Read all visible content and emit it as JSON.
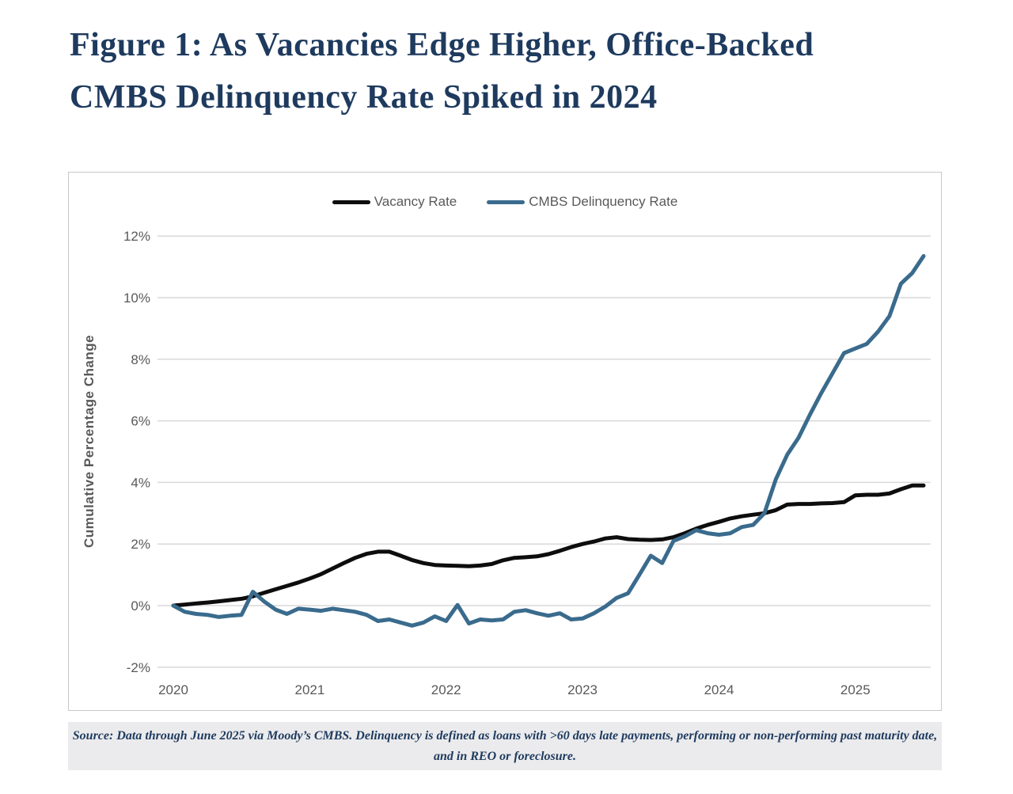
{
  "figure": {
    "title_line1": "Figure 1: As Vacancies Edge Higher, Office-Backed",
    "title_line2": "CMBS Delinquency Rate Spiked in 2024"
  },
  "source": {
    "line1": "Source: Data through June 2025 via Moody’s CMBS. Delinquency is defined as loans with >60 days late payments, performing or non-performing past maturity date,",
    "line2": "and in REO or foreclosure."
  },
  "chart_data": {
    "type": "line",
    "ylabel": "Cumulative Percentage Change",
    "xlabel": "",
    "ylim": [
      -2,
      12
    ],
    "grid": "horizontal",
    "legend_position": "top-center",
    "x_interval": "monthly",
    "x_start": "2020-01",
    "x_ticks": [
      "2020",
      "2021",
      "2022",
      "2023",
      "2024",
      "2025"
    ],
    "y_ticks": [
      {
        "label": "12%",
        "value": 12
      },
      {
        "label": "10%",
        "value": 10
      },
      {
        "label": "8%",
        "value": 8
      },
      {
        "label": "6%",
        "value": 6
      },
      {
        "label": "4%",
        "value": 4
      },
      {
        "label": "2%",
        "value": 2
      },
      {
        "label": "0%",
        "value": 0
      },
      {
        "label": "-2%",
        "value": -2
      }
    ],
    "colors": {
      "grid": "#d9d9d9",
      "axis_text": "#595959",
      "title_navy": "#1e3a5e"
    },
    "series": [
      {
        "id": "vacancy-rate",
        "name": "Vacancy Rate",
        "color": "#0d0d0d",
        "values": [
          0.0,
          0.03,
          0.07,
          0.1,
          0.14,
          0.18,
          0.22,
          0.3,
          0.42,
          0.53,
          0.64,
          0.75,
          0.88,
          1.02,
          1.2,
          1.38,
          1.55,
          1.68,
          1.75,
          1.75,
          1.62,
          1.48,
          1.38,
          1.32,
          1.3,
          1.29,
          1.28,
          1.3,
          1.35,
          1.47,
          1.55,
          1.57,
          1.6,
          1.67,
          1.78,
          1.9,
          2.0,
          2.08,
          2.18,
          2.22,
          2.16,
          2.14,
          2.13,
          2.15,
          2.22,
          2.35,
          2.5,
          2.62,
          2.72,
          2.83,
          2.9,
          2.95,
          3.0,
          3.1,
          3.28,
          3.3,
          3.3,
          3.32,
          3.33,
          3.36,
          3.58,
          3.6,
          3.6,
          3.64,
          3.78,
          3.9,
          3.9
        ]
      },
      {
        "id": "cmbs-delinquency-rate",
        "name": "CMBS Delinquency Rate",
        "color": "#3a6b8d",
        "values": [
          0.0,
          -0.2,
          -0.27,
          -0.3,
          -0.37,
          -0.33,
          -0.3,
          0.45,
          0.13,
          -0.13,
          -0.27,
          -0.1,
          -0.13,
          -0.17,
          -0.1,
          -0.15,
          -0.2,
          -0.3,
          -0.5,
          -0.45,
          -0.55,
          -0.65,
          -0.55,
          -0.35,
          -0.5,
          0.02,
          -0.58,
          -0.45,
          -0.48,
          -0.45,
          -0.2,
          -0.15,
          -0.25,
          -0.33,
          -0.25,
          -0.45,
          -0.42,
          -0.25,
          -0.03,
          0.25,
          0.4,
          1.0,
          1.62,
          1.38,
          2.1,
          2.25,
          2.45,
          2.35,
          2.3,
          2.35,
          2.55,
          2.62,
          3.0,
          4.1,
          4.9,
          5.45,
          6.2,
          6.9,
          7.55,
          8.2,
          8.35,
          8.5,
          8.9,
          9.4,
          10.45,
          10.8,
          11.35
        ]
      }
    ]
  }
}
